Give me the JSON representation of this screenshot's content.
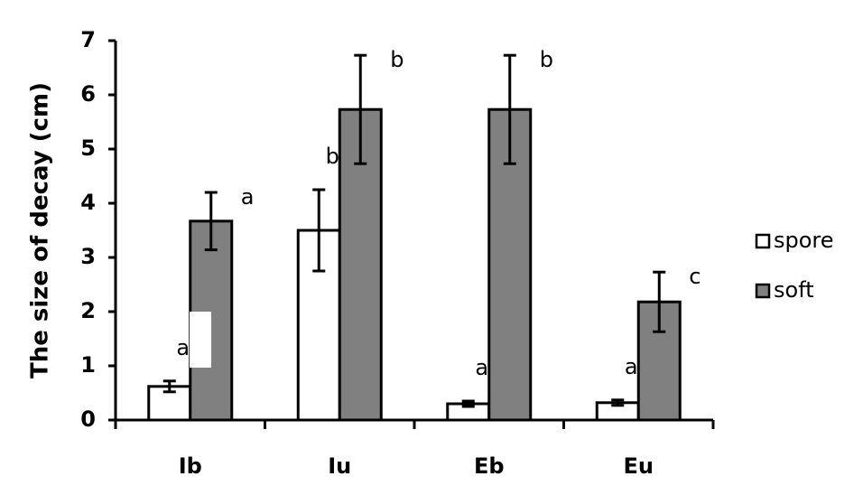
{
  "chart_data": {
    "type": "bar",
    "y_label": "The size of decay (cm)",
    "categories": [
      "Ib",
      "Iu",
      "Eb",
      "Eu"
    ],
    "series": [
      {
        "name": "spore",
        "color": "#ffffff",
        "values": [
          0.62,
          3.5,
          0.3,
          0.32
        ],
        "errors": [
          0.1,
          0.75,
          0.05,
          0.05
        ],
        "letters": [
          "a",
          "b",
          "a",
          "a"
        ]
      },
      {
        "name": "soft",
        "color": "#808080",
        "values": [
          3.67,
          5.73,
          5.73,
          2.18
        ],
        "errors": [
          0.53,
          1.0,
          1.0,
          0.55
        ],
        "letters": [
          "a",
          "b",
          "b",
          "c"
        ]
      }
    ],
    "ylim": [
      0,
      7
    ],
    "yticks": [
      0,
      1,
      2,
      3,
      4,
      5,
      6,
      7
    ],
    "legend": "right"
  }
}
